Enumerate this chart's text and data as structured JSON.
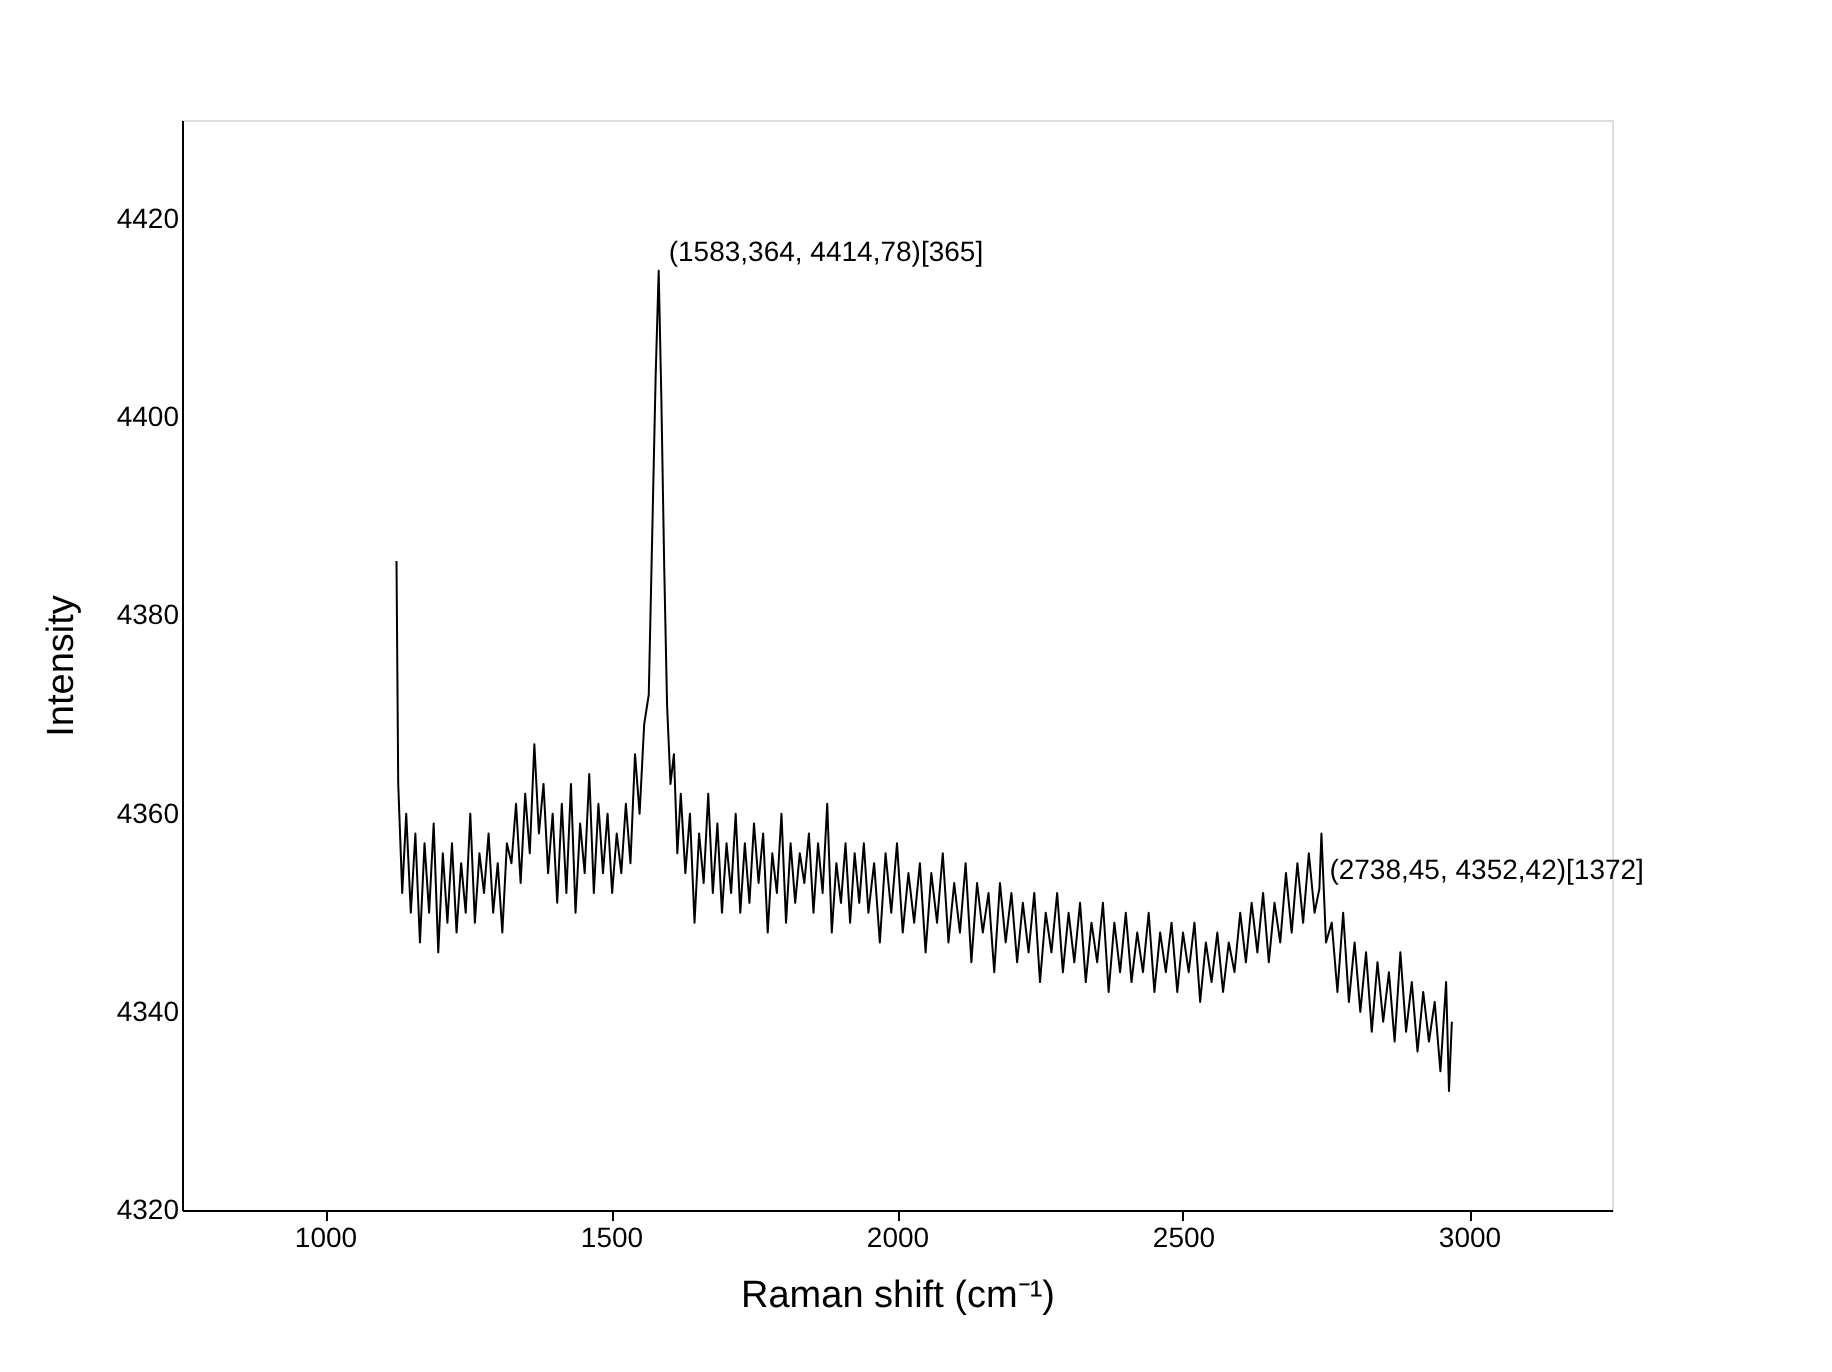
{
  "chart_data": {
    "type": "line",
    "xlabel": "Raman shift (cm⁻¹)",
    "ylabel": "Intensity",
    "xlim": [
      750,
      3250
    ],
    "xticks": [
      1000,
      1500,
      2000,
      2500,
      3000
    ],
    "ylim": [
      4320,
      4430
    ],
    "yticks": [
      4320,
      4340,
      4360,
      4380,
      4400,
      4420
    ],
    "grid": false,
    "marker": "none",
    "line_style": "solid",
    "annotations": [
      {
        "text": "(1583,364, 4414,78)[365]",
        "x": 1583.364,
        "y": 4414.78
      },
      {
        "text": "(2738,45, 4352,42)[1372]",
        "x": 2738.45,
        "y": 4352.42
      }
    ],
    "series": [
      {
        "color": "#000000",
        "x": [
          1125,
          1128,
          1135,
          1142,
          1150,
          1158,
          1166,
          1174,
          1182,
          1190,
          1198,
          1206,
          1214,
          1222,
          1230,
          1238,
          1246,
          1254,
          1262,
          1270,
          1278,
          1286,
          1294,
          1302,
          1310,
          1318,
          1326,
          1334,
          1342,
          1350,
          1358,
          1366,
          1374,
          1382,
          1390,
          1398,
          1406,
          1414,
          1422,
          1430,
          1438,
          1446,
          1454,
          1462,
          1470,
          1478,
          1486,
          1494,
          1502,
          1510,
          1518,
          1526,
          1534,
          1542,
          1550,
          1558,
          1566,
          1572,
          1578,
          1583.364,
          1588,
          1593,
          1598,
          1604,
          1610,
          1616,
          1622,
          1630,
          1638,
          1646,
          1654,
          1662,
          1670,
          1678,
          1686,
          1694,
          1702,
          1710,
          1718,
          1726,
          1734,
          1742,
          1750,
          1758,
          1766,
          1774,
          1782,
          1790,
          1798,
          1806,
          1814,
          1822,
          1830,
          1838,
          1846,
          1854,
          1862,
          1870,
          1878,
          1886,
          1894,
          1902,
          1910,
          1918,
          1926,
          1934,
          1942,
          1950,
          1960,
          1970,
          1980,
          1990,
          2000,
          2010,
          2020,
          2030,
          2040,
          2050,
          2060,
          2070,
          2080,
          2090,
          2100,
          2110,
          2120,
          2130,
          2140,
          2150,
          2160,
          2170,
          2180,
          2190,
          2200,
          2210,
          2220,
          2230,
          2240,
          2250,
          2260,
          2270,
          2280,
          2290,
          2300,
          2310,
          2320,
          2330,
          2340,
          2350,
          2360,
          2370,
          2380,
          2390,
          2400,
          2410,
          2420,
          2430,
          2440,
          2450,
          2460,
          2470,
          2480,
          2490,
          2500,
          2510,
          2520,
          2530,
          2540,
          2550,
          2560,
          2570,
          2580,
          2590,
          2600,
          2610,
          2620,
          2630,
          2640,
          2650,
          2660,
          2670,
          2680,
          2690,
          2700,
          2710,
          2720,
          2730,
          2738.45,
          2742,
          2750,
          2760,
          2770,
          2780,
          2790,
          2800,
          2810,
          2820,
          2830,
          2840,
          2850,
          2860,
          2870,
          2880,
          2890,
          2900,
          2910,
          2920,
          2930,
          2940,
          2950,
          2960,
          2965,
          2970
        ],
        "values": [
          4385.5,
          4363,
          4352,
          4360,
          4350,
          4358,
          4347,
          4357,
          4350,
          4359,
          4346,
          4356,
          4349,
          4357,
          4348,
          4355,
          4350,
          4360,
          4349,
          4356,
          4352,
          4358,
          4350,
          4355,
          4348,
          4357,
          4355,
          4361,
          4353,
          4362,
          4356,
          4367,
          4358,
          4363,
          4354,
          4360,
          4351,
          4361,
          4352,
          4363,
          4350,
          4359,
          4354,
          4364,
          4352,
          4361,
          4354,
          4360,
          4352,
          4358,
          4354,
          4361,
          4355,
          4366,
          4360,
          4369,
          4372,
          4388,
          4404,
          4414.78,
          4402,
          4385,
          4371,
          4363,
          4366,
          4356,
          4362,
          4354,
          4360,
          4349,
          4358,
          4353,
          4362,
          4352,
          4359,
          4350,
          4357,
          4352,
          4360,
          4350,
          4357,
          4351,
          4359,
          4353,
          4358,
          4348,
          4356,
          4352,
          4360,
          4349,
          4357,
          4351,
          4356,
          4353,
          4358,
          4350,
          4357,
          4352,
          4361,
          4348,
          4355,
          4351,
          4357,
          4349,
          4356,
          4351,
          4357,
          4350,
          4355,
          4347,
          4356,
          4350,
          4357,
          4348,
          4354,
          4349,
          4355,
          4346,
          4354,
          4349,
          4356,
          4347,
          4353,
          4348,
          4355,
          4345,
          4353,
          4348,
          4352,
          4344,
          4353,
          4347,
          4352,
          4345,
          4351,
          4346,
          4352,
          4343,
          4350,
          4346,
          4352,
          4344,
          4350,
          4345,
          4351,
          4343,
          4349,
          4345,
          4351,
          4342,
          4349,
          4344,
          4350,
          4343,
          4348,
          4344,
          4350,
          4342,
          4348,
          4344,
          4349,
          4342,
          4348,
          4344,
          4349,
          4341,
          4347,
          4343,
          4348,
          4342,
          4347,
          4344,
          4350,
          4345,
          4351,
          4346,
          4352,
          4345,
          4351,
          4347,
          4354,
          4348,
          4355,
          4349,
          4356,
          4350,
          4352.42,
          4358,
          4347,
          4349,
          4342,
          4350,
          4341,
          4347,
          4340,
          4346,
          4338,
          4345,
          4339,
          4344,
          4337,
          4346,
          4338,
          4343,
          4336,
          4342,
          4337,
          4341,
          4334,
          4343,
          4332,
          4339
        ]
      }
    ]
  }
}
